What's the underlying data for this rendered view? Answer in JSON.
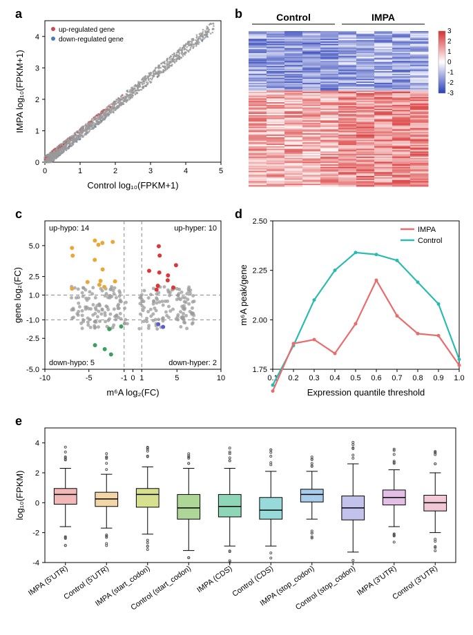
{
  "panel_a": {
    "label": "a",
    "xlabel": "Control log₁₀(FPKM+1)",
    "ylabel": "IMPA log₁₀(FPKM+1)",
    "legend": [
      "up-regulated gene",
      "down-regulated gene"
    ],
    "legend_colors": [
      "#c94a56",
      "#4a7ab8"
    ],
    "xlim": [
      0,
      5
    ],
    "ylim": [
      0,
      4.5
    ],
    "xticks": [
      0,
      1,
      2,
      3,
      4,
      5
    ],
    "yticks": [
      0,
      1,
      2,
      3,
      4
    ],
    "up_color": "#c94a56",
    "down_color": "#4a7ab8",
    "ns_color": "#999999"
  },
  "panel_b": {
    "label": "b",
    "groups": [
      "Control",
      "IMPA"
    ],
    "colorbar_ticks": [
      -3,
      -2,
      -1,
      0,
      1,
      2,
      3
    ],
    "low": "#2b3fb8",
    "mid": "#ffffff",
    "high": "#d93030"
  },
  "panel_c": {
    "label": "c",
    "xlabel": "m⁶A log₂(FC)",
    "ylabel": "gene log₂(FC)",
    "xlim": [
      -10,
      10
    ],
    "ylim": [
      -5,
      7
    ],
    "xticks": [
      -10,
      -5,
      -1,
      0,
      1,
      5,
      10
    ],
    "yticks": [
      -5.0,
      -2.5,
      -1.0,
      1.0,
      2.5,
      5.0
    ],
    "vlines": [
      -1,
      1
    ],
    "hlines": [
      -1,
      1
    ],
    "quad_labels": {
      "ul": "up-hypo: 14",
      "ur": "up-hyper: 10",
      "ll": "down-hypo: 5",
      "lr": "down-hyper: 2"
    },
    "colors": {
      "ul": "#e8a838",
      "ur": "#d93838",
      "ll": "#3e9e5e",
      "lr": "#5e5ec9",
      "ns": "#9a9a9a"
    }
  },
  "panel_d": {
    "label": "d",
    "xlabel": "Expression quantile threshold",
    "ylabel": "m⁶A peak/gene",
    "xticks": [
      0.1,
      0.2,
      0.3,
      0.4,
      0.5,
      0.6,
      0.7,
      0.8,
      0.9,
      1.0
    ],
    "yticks": [
      1.75,
      2.0,
      2.25,
      2.5
    ],
    "legend": [
      "IMPA",
      "Control"
    ],
    "legend_colors": [
      "#e86c6c",
      "#2bbab0"
    ],
    "IMPA": [
      1.64,
      1.88,
      1.9,
      1.83,
      1.98,
      2.2,
      2.02,
      1.93,
      1.92,
      1.77
    ],
    "Control": [
      1.67,
      1.87,
      2.1,
      2.25,
      2.34,
      2.33,
      2.3,
      2.19,
      2.08,
      1.8
    ]
  },
  "panel_e": {
    "label": "e",
    "ylabel": "log₁₀(FPKM)",
    "ylim": [
      -4,
      5
    ],
    "yticks": [
      -4,
      -2,
      0,
      2,
      4
    ],
    "categories": [
      "IMPA (5'UTR)",
      "Control (5'UTR)",
      "IMPA (start_codon)",
      "Control (start_codon)",
      "IMPA (CDS)",
      "Control (CDS)",
      "IMPA (stop_codon)",
      "Control (stop_codon)",
      "IMPA (3'UTR)",
      "Control (3'UTR)"
    ],
    "colors": [
      "#f2b8b8",
      "#f2d6a8",
      "#d6e08f",
      "#aed696",
      "#8ed6b8",
      "#98d9d9",
      "#a8cceb",
      "#c2c2ed",
      "#e3bee5",
      "#f2c8d6"
    ],
    "boxes": [
      {
        "q1": -0.1,
        "med": 0.55,
        "q3": 0.95,
        "wlo": -1.6,
        "whi": 2.3
      },
      {
        "q1": -0.25,
        "med": 0.25,
        "q3": 0.7,
        "wlo": -1.7,
        "whi": 1.9
      },
      {
        "q1": -0.3,
        "med": 0.55,
        "q3": 0.95,
        "wlo": -2.1,
        "whi": 2.4
      },
      {
        "q1": -1.1,
        "med": -0.35,
        "q3": 0.55,
        "wlo": -3.2,
        "whi": 2.3
      },
      {
        "q1": -0.95,
        "med": -0.25,
        "q3": 0.55,
        "wlo": -2.9,
        "whi": 2.3
      },
      {
        "q1": -1.1,
        "med": -0.5,
        "q3": 0.35,
        "wlo": -2.9,
        "whi": 2.1
      },
      {
        "q1": 0.05,
        "med": 0.55,
        "q3": 0.9,
        "wlo": -1.1,
        "whi": 2.1
      },
      {
        "q1": -1.15,
        "med": -0.35,
        "q3": 0.45,
        "wlo": -3.3,
        "whi": 2.6
      },
      {
        "q1": -0.15,
        "med": 0.35,
        "q3": 0.85,
        "wlo": -1.6,
        "whi": 2.2
      },
      {
        "q1": -0.55,
        "med": 0.0,
        "q3": 0.5,
        "wlo": -2.0,
        "whi": 2.0
      }
    ]
  }
}
